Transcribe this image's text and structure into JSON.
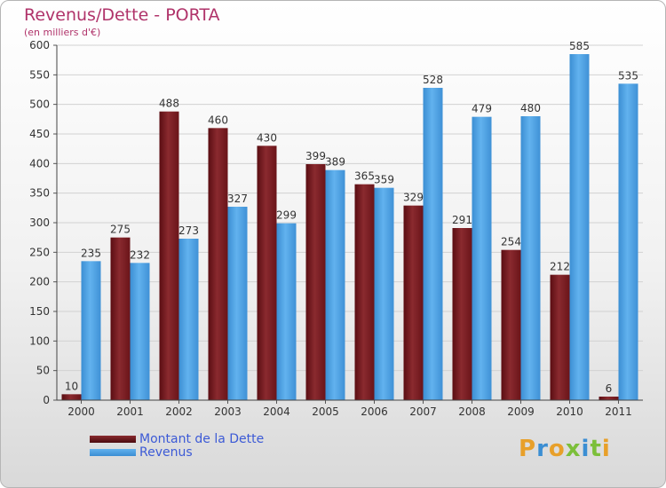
{
  "title": "Revenus/Dette - PORTA",
  "subtitle": "(en milliers d'€)",
  "colors": {
    "dette": "#7b1a1f",
    "revenus": "#4a9fe0"
  },
  "legend": {
    "dette": "Montant de la Dette",
    "revenus": "Revenus"
  },
  "logo": {
    "text": "Proxiti"
  },
  "chart_data": {
    "type": "bar",
    "categories": [
      "2000",
      "2001",
      "2002",
      "2003",
      "2004",
      "2005",
      "2006",
      "2007",
      "2008",
      "2009",
      "2010",
      "2011"
    ],
    "series": [
      {
        "name": "Montant de la Dette",
        "values": [
          10,
          275,
          488,
          460,
          430,
          399,
          365,
          329,
          291,
          254,
          212,
          6
        ]
      },
      {
        "name": "Revenus",
        "values": [
          235,
          232,
          273,
          327,
          299,
          389,
          359,
          528,
          479,
          480,
          585,
          535
        ]
      }
    ],
    "yticks": [
      0,
      50,
      100,
      150,
      200,
      250,
      300,
      350,
      400,
      450,
      500,
      550,
      600
    ],
    "ylim": [
      0,
      600
    ],
    "grid": true,
    "legend_position": "bottom-left"
  }
}
